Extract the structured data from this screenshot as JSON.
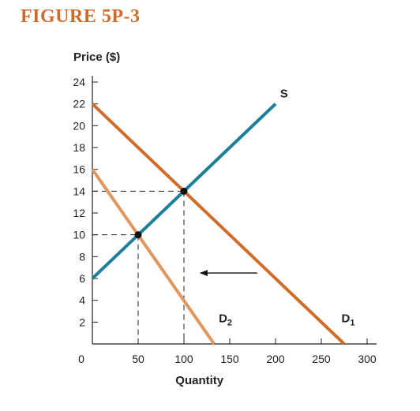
{
  "figure": {
    "title": "FIGURE 5P-3"
  },
  "chart_data": {
    "type": "line",
    "title": "",
    "xlabel": "Quantity",
    "ylabel": "Price ($)",
    "xlim": [
      0,
      300
    ],
    "ylim": [
      0,
      24
    ],
    "x_ticks": [
      0,
      50,
      100,
      150,
      200,
      250,
      300
    ],
    "y_ticks": [
      2,
      4,
      6,
      8,
      10,
      12,
      14,
      16,
      18,
      20,
      22,
      24
    ],
    "grid": false,
    "series": [
      {
        "name": "S",
        "x": [
          0,
          200
        ],
        "y": [
          6,
          22
        ],
        "color": "#1c7f97"
      },
      {
        "name": "D",
        "sub": "1",
        "x": [
          0,
          275
        ],
        "y": [
          22,
          0
        ],
        "color": "#d06d2b"
      },
      {
        "name": "D",
        "sub": "2",
        "x": [
          0,
          133
        ],
        "y": [
          16,
          0
        ],
        "color": "#e0965c"
      }
    ],
    "points": [
      {
        "x": 100,
        "y": 14
      },
      {
        "x": 50,
        "y": 10
      }
    ],
    "annotations": [
      {
        "type": "arrow",
        "from": [
          180,
          6.5
        ],
        "to": [
          118,
          6.5
        ]
      }
    ]
  }
}
